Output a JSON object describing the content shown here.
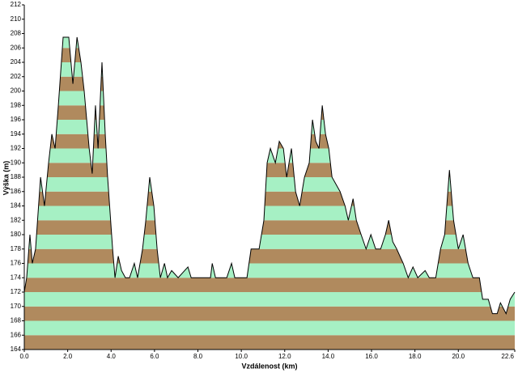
{
  "chart_data": {
    "type": "area",
    "x_label": "Vzdálenost  (km)",
    "y_label": "Výška (m)",
    "x": [
      0,
      0.11,
      0.26,
      0.37,
      0.52,
      0.75,
      0.93,
      1.12,
      1.27,
      1.42,
      1.57,
      1.79,
      2.05,
      2.24,
      2.43,
      2.61,
      2.76,
      2.99,
      3.13,
      3.28,
      3.4,
      3.58,
      3.73,
      3.84,
      4.07,
      4.18,
      4.33,
      4.48,
      4.66,
      4.85,
      5.07,
      5.22,
      5.45,
      5.6,
      5.78,
      5.97,
      6.12,
      6.27,
      6.46,
      6.6,
      6.79,
      7.09,
      7.54,
      7.69,
      8.13,
      8.58,
      8.66,
      8.81,
      9.33,
      9.55,
      9.7,
      10.26,
      10.45,
      10.82,
      11.04,
      11.19,
      11.34,
      11.57,
      11.75,
      11.94,
      12.09,
      12.31,
      12.5,
      12.69,
      12.91,
      13.13,
      13.28,
      13.43,
      13.58,
      13.73,
      13.88,
      14.03,
      14.18,
      14.55,
      14.78,
      14.93,
      15.15,
      15.3,
      15.52,
      15.75,
      15.97,
      16.19,
      16.42,
      16.64,
      16.79,
      16.98,
      17.16,
      17.46,
      17.69,
      17.91,
      18.13,
      18.47,
      18.66,
      18.96,
      19.18,
      19.37,
      19.59,
      19.78,
      20.0,
      20.22,
      20.45,
      20.67,
      20.97,
      21.12,
      21.38,
      21.57,
      21.79,
      21.94,
      22.2,
      22.39,
      22.6
    ],
    "values": [
      172,
      174,
      180,
      176,
      178,
      188,
      184,
      190,
      194,
      192,
      198,
      207.5,
      207.5,
      201,
      207.5,
      204,
      200,
      192,
      188.5,
      198,
      192,
      204,
      194,
      188,
      178,
      174,
      177,
      175,
      174,
      174,
      176,
      174,
      178,
      182,
      188,
      184,
      178,
      174,
      176,
      174,
      175,
      174,
      175.5,
      174,
      174,
      174,
      176,
      174,
      174,
      176,
      174,
      174,
      178,
      178,
      182,
      190,
      192,
      190,
      193,
      192,
      188,
      192,
      186,
      184,
      188,
      190,
      196,
      193,
      192,
      198,
      194,
      192,
      188,
      186,
      184,
      182,
      185,
      182,
      180,
      178,
      180,
      178,
      178,
      180,
      182,
      179,
      178,
      176,
      174,
      175.5,
      174,
      175,
      174,
      174,
      178,
      180,
      189,
      182,
      178,
      180,
      176,
      174,
      174,
      171,
      171,
      169,
      169,
      170.5,
      169,
      171,
      172
    ],
    "line_color": "#000000",
    "band_colors": [
      "#b08a5e",
      "#a6f0c4"
    ],
    "xlim": [
      0,
      22.6
    ],
    "ylim": [
      164,
      212
    ],
    "xticks": [
      {
        "value": 0,
        "label": "0.0"
      },
      {
        "value": 2,
        "label": "2.0"
      },
      {
        "value": 4,
        "label": "4.0"
      },
      {
        "value": 6,
        "label": "6.0"
      },
      {
        "value": 8,
        "label": "8.0"
      },
      {
        "value": 10,
        "label": "10.0"
      },
      {
        "value": 12,
        "label": "12.0"
      },
      {
        "value": 14,
        "label": "14.0"
      },
      {
        "value": 16,
        "label": "16.0"
      },
      {
        "value": 18,
        "label": "18.0"
      },
      {
        "value": 20,
        "label": "20.0"
      },
      {
        "value": 22.6,
        "label": "22.6"
      }
    ],
    "yticks": [
      164,
      166,
      168,
      170,
      172,
      174,
      176,
      178,
      180,
      182,
      184,
      186,
      188,
      190,
      192,
      194,
      196,
      198,
      200,
      202,
      204,
      206,
      208,
      210,
      212
    ]
  }
}
